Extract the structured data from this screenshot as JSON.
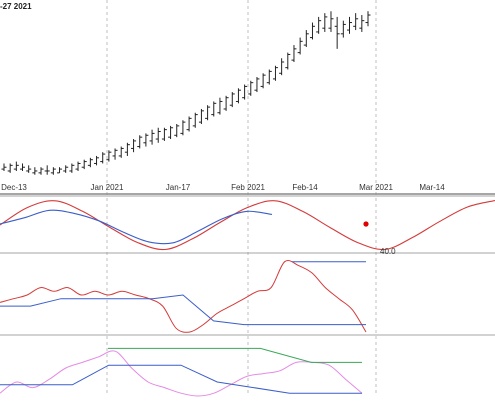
{
  "header": {
    "date_label": "-27 2021"
  },
  "x_axis": {
    "ticks": [
      "Dec-13",
      "Jan 2021",
      "Jan-17",
      "Feb 2021",
      "Feb-14",
      "Mar 2021",
      "Mar-14"
    ]
  },
  "colors": {
    "bars": "#222222",
    "cycle_red": "#d43a3a",
    "cycle_blue": "#3a5ec9",
    "magenta": "#e58ae6",
    "green": "#3aa858",
    "divider": "#888888",
    "gridline": "#b0b0b0",
    "marker": "#e00000"
  },
  "cycle_panel": {
    "label": "40.0"
  },
  "chart_data": [
    {
      "type": "bar",
      "title": "",
      "xlabel": "",
      "ylabel": "",
      "categories": [
        "Dec-13",
        "Jan 2021",
        "Jan-17",
        "Feb 2021",
        "Feb-14",
        "Mar 2021",
        "Mar-14"
      ],
      "series": [
        {
          "values": [
            [
              147,
              150,
              146,
              148
            ],
            [
              146,
              150,
              145,
              149
            ],
            [
              147,
              151,
              146,
              149
            ],
            [
              147,
              150,
              146,
              148
            ],
            [
              146,
              149,
              145,
              147
            ],
            [
              145,
              148,
              144,
              146
            ],
            [
              145,
              148,
              144,
              147
            ],
            [
              146,
              149,
              144,
              146
            ],
            [
              145,
              148,
              144,
              147
            ],
            [
              145,
              148,
              145,
              147
            ],
            [
              146,
              149,
              145,
              148
            ],
            [
              146,
              150,
              145,
              149
            ],
            [
              147,
              151,
              146,
              150
            ],
            [
              148,
              152,
              147,
              151
            ],
            [
              149,
              153,
              148,
              152
            ],
            [
              150,
              154,
              149,
              153
            ],
            [
              151,
              156,
              150,
              155
            ],
            [
              152,
              157,
              151,
              156
            ],
            [
              154,
              158,
              152,
              157
            ],
            [
              154,
              159,
              153,
              158
            ],
            [
              156,
              161,
              154,
              160
            ],
            [
              158,
              163,
              156,
              162
            ],
            [
              159,
              165,
              158,
              164
            ],
            [
              161,
              166,
              159,
              165
            ],
            [
              162,
              168,
              160,
              166
            ],
            [
              163,
              169,
              161,
              167
            ],
            [
              163,
              169,
              162,
              168
            ],
            [
              164,
              170,
              163,
              169
            ],
            [
              165,
              171,
              164,
              170
            ],
            [
              166,
              173,
              165,
              172
            ],
            [
              168,
              175,
              167,
              174
            ],
            [
              170,
              177,
              169,
              176
            ],
            [
              172,
              179,
              171,
              178
            ],
            [
              174,
              181,
              173,
              180
            ],
            [
              176,
              183,
              175,
              182
            ],
            [
              177,
              185,
              176,
              183
            ],
            [
              179,
              186,
              178,
              185
            ],
            [
              181,
              188,
              180,
              187
            ],
            [
              183,
              190,
              182,
              189
            ],
            [
              185,
              192,
              184,
              191
            ],
            [
              187,
              194,
              186,
              193
            ],
            [
              189,
              196,
              188,
              195
            ],
            [
              191,
              198,
              190,
              197
            ],
            [
              193,
              200,
              192,
              199
            ],
            [
              195,
              202,
              194,
              201
            ],
            [
              198,
              206,
              197,
              204
            ],
            [
              201,
              209,
              200,
              208
            ],
            [
              205,
              213,
              204,
              211
            ],
            [
              209,
              217,
              208,
              215
            ],
            [
              213,
              221,
              212,
              219
            ],
            [
              217,
              225,
              216,
              223
            ],
            [
              220,
              228,
              219,
              226
            ],
            [
              222,
              230,
              220,
              228
            ],
            [
              222,
              231,
              220,
              227
            ],
            [
              223,
              228,
              211,
              219
            ],
            [
              219,
              226,
              217,
              224
            ],
            [
              221,
              228,
              219,
              225
            ],
            [
              223,
              230,
              221,
              227
            ],
            [
              222,
              229,
              220,
              226
            ],
            [
              225,
              231,
              223,
              229
            ]
          ]
        }
      ]
    },
    {
      "type": "line",
      "series": [
        {
          "values": [
            0.0,
            0.7,
            0.97,
            0.55,
            -0.1,
            -0.7,
            -0.98,
            -0.55,
            0.1,
            0.7,
            0.97,
            0.55,
            -0.1,
            -0.7,
            -0.98,
            -0.5,
            0.15,
            0.72,
            0.98
          ]
        },
        {
          "values": [
            0.05,
            0.35,
            0.7,
            0.55,
            0.2,
            -0.35,
            -0.8,
            -0.85,
            -0.3,
            0.3,
            0.65,
            0.5
          ]
        }
      ]
    },
    {
      "type": "line",
      "series": [
        {
          "values": [
            0.4,
            0.45,
            0.5,
            0.6,
            0.55,
            0.6,
            0.5,
            0.55,
            0.5,
            0.55,
            0.5,
            0.45,
            0.35,
            0.05,
            0.0,
            0.1,
            0.25,
            0.35,
            0.45,
            0.55,
            0.6,
            0.95,
            0.9,
            0.8,
            0.6,
            0.45,
            0.3,
            0.0
          ]
        },
        {
          "values": [
            0.35,
            0.35,
            0.45,
            0.45,
            0.45,
            0.45,
            0.5,
            0.15,
            0.1,
            0.1,
            0.1,
            0.1,
            0.1
          ]
        },
        {
          "values": [
            0.95,
            0.95,
            0.95,
            0.95
          ]
        }
      ]
    },
    {
      "type": "line",
      "series": [
        {
          "values": [
            0.05,
            0.25,
            0.15,
            0.3,
            0.5,
            0.6,
            0.7,
            0.8,
            0.5,
            0.25,
            0.15,
            0.05,
            0.0,
            0.05,
            0.2,
            0.35,
            0.4,
            0.45,
            0.6,
            0.6,
            0.55,
            0.3,
            0.05
          ]
        },
        {
          "values": [
            0.2,
            0.2,
            0.2,
            0.55,
            0.55,
            0.55,
            0.25,
            0.15,
            0.05,
            0.05,
            0.05
          ]
        },
        {
          "values": [
            0.85,
            0.85,
            0.85,
            0.85,
            0.6,
            0.6
          ]
        }
      ]
    }
  ]
}
